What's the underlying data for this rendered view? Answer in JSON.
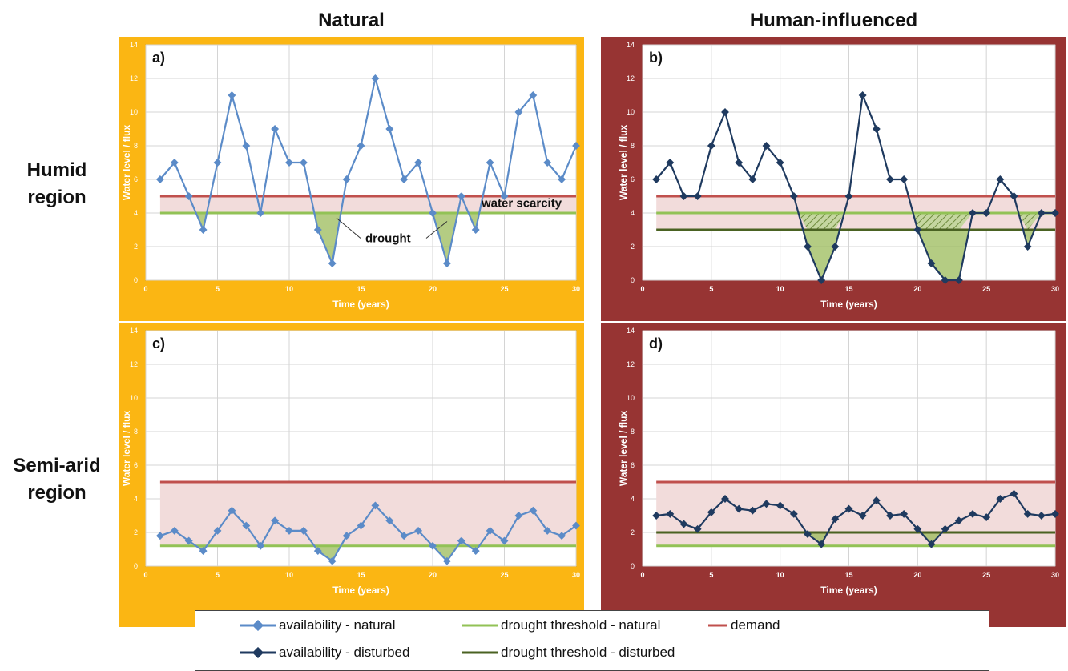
{
  "column_titles": [
    "Natural",
    "Human-influenced"
  ],
  "row_titles": [
    {
      "line1": "Humid",
      "line2": "region"
    },
    {
      "line1": "Semi-arid",
      "line2": "region"
    }
  ],
  "colors": {
    "natural_bg": "#FBB613",
    "human_bg": "#973433",
    "availability_natural": "#5B8BC8",
    "availability_disturbed": "#1F3A5F",
    "drought_threshold_natural": "#92C256",
    "drought_threshold_disturbed": "#4A6222",
    "demand": "#C0504D",
    "scarcity_fill": "#F2DCDB",
    "drought_fill": "#9BBB59",
    "axis_text_on_colored_bg": "#ffffff"
  },
  "legend": {
    "availability_natural": "availability - natural",
    "drought_threshold_natural": "drought threshold - natural",
    "demand": "demand",
    "availability_disturbed": "availability - disturbed",
    "drought_threshold_disturbed": "drought threshold - disturbed"
  },
  "chart_data": [
    {
      "type": "line",
      "panel_label": "a)",
      "xlabel": "Time (years)",
      "ylabel": "Water level / flux",
      "xlim": [
        0,
        30
      ],
      "ylim": [
        0,
        14
      ],
      "x_ticks": [
        0,
        5,
        10,
        15,
        20,
        25,
        30
      ],
      "y_ticks": [
        0,
        2,
        4,
        6,
        8,
        10,
        12,
        14
      ],
      "grid": true,
      "background": "natural",
      "annotations": [
        "water scarcity",
        "drought"
      ],
      "x": [
        1,
        2,
        3,
        4,
        5,
        6,
        7,
        8,
        9,
        10,
        11,
        12,
        13,
        14,
        15,
        16,
        17,
        18,
        19,
        20,
        21,
        22,
        23,
        24,
        25,
        26,
        27,
        28,
        29,
        30
      ],
      "series": [
        {
          "name": "availability - natural",
          "style": "availability_natural",
          "values": [
            6,
            7,
            5,
            3,
            7,
            11,
            8,
            4,
            9,
            7,
            7,
            3,
            1,
            6,
            8,
            12,
            9,
            6,
            7,
            4,
            1,
            5,
            3,
            7,
            5,
            10,
            11,
            7,
            6,
            8
          ]
        },
        {
          "name": "drought threshold - natural",
          "style": "drought_threshold_natural",
          "constant": 4
        },
        {
          "name": "demand",
          "style": "demand",
          "constant": 5
        }
      ],
      "drought_threshold": 4
    },
    {
      "type": "line",
      "panel_label": "b)",
      "xlabel": "Time (years)",
      "ylabel": "Water level / flux",
      "xlim": [
        0,
        30
      ],
      "ylim": [
        0,
        14
      ],
      "x_ticks": [
        0,
        5,
        10,
        15,
        20,
        25,
        30
      ],
      "y_ticks": [
        0,
        2,
        4,
        6,
        8,
        10,
        12,
        14
      ],
      "grid": true,
      "background": "human",
      "annotations": [],
      "x": [
        1,
        2,
        3,
        4,
        5,
        6,
        7,
        8,
        9,
        10,
        11,
        12,
        13,
        14,
        15,
        16,
        17,
        18,
        19,
        20,
        21,
        22,
        23,
        24,
        25,
        26,
        27,
        28,
        29,
        30
      ],
      "series": [
        {
          "name": "availability - disturbed",
          "style": "availability_disturbed",
          "values": [
            6,
            7,
            5,
            5,
            8,
            10,
            7,
            6,
            8,
            7,
            5,
            2,
            0,
            2,
            5,
            11,
            9,
            6,
            6,
            3,
            1,
            0,
            0,
            4,
            4,
            6,
            5,
            2,
            4,
            4
          ]
        },
        {
          "name": "drought threshold - natural",
          "style": "drought_threshold_natural",
          "constant": 4
        },
        {
          "name": "drought threshold - disturbed",
          "style": "drought_threshold_disturbed",
          "constant": 3
        },
        {
          "name": "demand",
          "style": "demand",
          "constant": 5
        }
      ],
      "drought_threshold": 3,
      "hatch_between": [
        3,
        4
      ]
    },
    {
      "type": "line",
      "panel_label": "c)",
      "xlabel": "Time (years)",
      "ylabel": "Water level / flux",
      "xlim": [
        0,
        30
      ],
      "ylim": [
        0,
        14
      ],
      "x_ticks": [
        0,
        5,
        10,
        15,
        20,
        25,
        30
      ],
      "y_ticks": [
        0,
        2,
        4,
        6,
        8,
        10,
        12,
        14
      ],
      "grid": true,
      "background": "natural",
      "annotations": [],
      "x": [
        1,
        2,
        3,
        4,
        5,
        6,
        7,
        8,
        9,
        10,
        11,
        12,
        13,
        14,
        15,
        16,
        17,
        18,
        19,
        20,
        21,
        22,
        23,
        24,
        25,
        26,
        27,
        28,
        29,
        30
      ],
      "series": [
        {
          "name": "availability - natural",
          "style": "availability_natural",
          "values": [
            1.8,
            2.1,
            1.5,
            0.9,
            2.1,
            3.3,
            2.4,
            1.2,
            2.7,
            2.1,
            2.1,
            0.9,
            0.3,
            1.8,
            2.4,
            3.6,
            2.7,
            1.8,
            2.1,
            1.2,
            0.3,
            1.5,
            0.9,
            2.1,
            1.5,
            3.0,
            3.3,
            2.1,
            1.8,
            2.4
          ]
        },
        {
          "name": "drought threshold - natural",
          "style": "drought_threshold_natural",
          "constant": 1.2
        },
        {
          "name": "demand",
          "style": "demand",
          "constant": 5
        }
      ],
      "drought_threshold": 1.2
    },
    {
      "type": "line",
      "panel_label": "d)",
      "xlabel": "Time (years)",
      "ylabel": "Water level / flux",
      "xlim": [
        0,
        30
      ],
      "ylim": [
        0,
        14
      ],
      "x_ticks": [
        0,
        5,
        10,
        15,
        20,
        25,
        30
      ],
      "y_ticks": [
        0,
        2,
        4,
        6,
        8,
        10,
        12,
        14
      ],
      "grid": true,
      "background": "human",
      "annotations": [],
      "x": [
        1,
        2,
        3,
        4,
        5,
        6,
        7,
        8,
        9,
        10,
        11,
        12,
        13,
        14,
        15,
        16,
        17,
        18,
        19,
        20,
        21,
        22,
        23,
        24,
        25,
        26,
        27,
        28,
        29,
        30
      ],
      "series": [
        {
          "name": "availability - disturbed",
          "style": "availability_disturbed",
          "values": [
            3.0,
            3.1,
            2.5,
            2.2,
            3.2,
            4.0,
            3.4,
            3.3,
            3.7,
            3.6,
            3.1,
            1.9,
            1.3,
            2.8,
            3.4,
            3.0,
            3.9,
            3.0,
            3.1,
            2.2,
            1.3,
            2.2,
            2.7,
            3.1,
            2.9,
            4.0,
            4.3,
            3.1,
            3.0,
            3.1
          ]
        },
        {
          "name": "drought threshold - natural",
          "style": "drought_threshold_natural",
          "constant": 1.2
        },
        {
          "name": "drought threshold - disturbed",
          "style": "drought_threshold_disturbed",
          "constant": 2
        },
        {
          "name": "demand",
          "style": "demand",
          "constant": 5
        }
      ],
      "drought_threshold": 2,
      "hatch_between": [
        2,
        2
      ]
    }
  ]
}
